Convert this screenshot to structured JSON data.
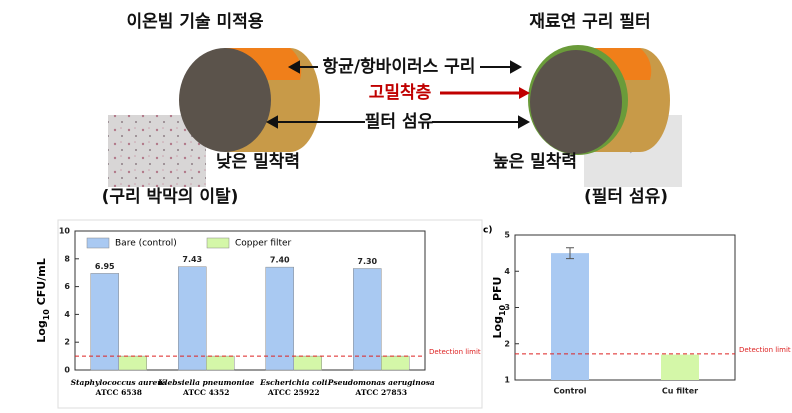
{
  "diagram": {
    "left_title": "이온빔 기술 미적용",
    "right_title": "재료연 구리 필터",
    "copper_label": "항균/항바이러스 구리",
    "adhesion_layer_label": "고밀착층",
    "fiber_label": "필터 섬유",
    "left_adhesion": "낮은 밀착력",
    "right_adhesion": "높은 밀착력",
    "left_caption": "(구리 박막의 이탈)",
    "right_caption": "(필터 섬유)"
  },
  "chart_data": [
    {
      "type": "bar",
      "ylabel": {
        "base": "Log",
        "sub": "10",
        "unit": " CFU/mL"
      },
      "categories": [
        [
          "Staphylococcus aureus",
          "ATCC 6538"
        ],
        [
          "Klebsiella pneumoniae",
          "ATCC 4352"
        ],
        [
          "Escherichia coli",
          "ATCC 25922"
        ],
        [
          "Pseudomonas aeruginosa",
          "ATCC 27853"
        ]
      ],
      "series": [
        {
          "name": "Bare (control)",
          "color": "#a9c9f2",
          "values": [
            6.95,
            7.43,
            7.4,
            7.3
          ],
          "value_labels": [
            "6.95",
            "7.43",
            "7.40",
            "7.30"
          ]
        },
        {
          "name": "Copper filter",
          "color": "#d4f7a8",
          "values": [
            1,
            1,
            1,
            1
          ]
        }
      ],
      "ylim": [
        0,
        10
      ],
      "yticks": [
        0,
        2,
        4,
        6,
        8,
        10
      ],
      "detection_limit": 1,
      "detection_label": "Detection limit"
    },
    {
      "type": "bar",
      "panel_label": "c)",
      "ylabel": {
        "base": "Log",
        "sub": "10",
        "unit": " PFU"
      },
      "categories": [
        "Control",
        "Cu filter"
      ],
      "values": [
        4.5,
        1.7
      ],
      "errors": [
        0.15,
        0
      ],
      "colors": [
        "#a9c9f2",
        "#d4f7a8"
      ],
      "ylim": [
        1,
        5
      ],
      "yticks": [
        1,
        2,
        3,
        4,
        5
      ],
      "detection_limit": 1.72,
      "detection_label": "Detection limit"
    }
  ]
}
